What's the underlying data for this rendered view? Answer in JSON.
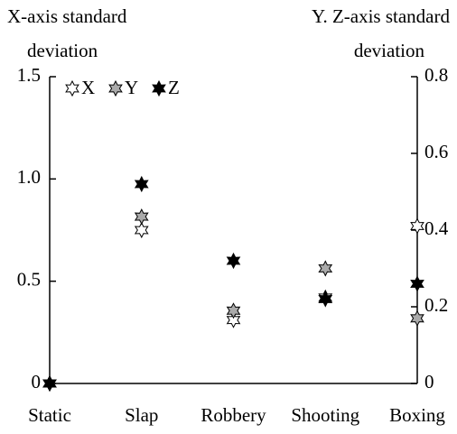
{
  "chart_data": {
    "type": "scatter",
    "ylabel": [
      "X-axis standard",
      "deviation"
    ],
    "y2label": [
      "Y. Z-axis standard",
      "deviation"
    ],
    "categories": [
      "Static",
      "Slap",
      "Robbery",
      "Shooting",
      "Boxing"
    ],
    "ylim": [
      0,
      1.5
    ],
    "yticks": [
      0,
      0.5,
      {
        "value": 1,
        "label": "1.0"
      },
      {
        "value": 1.5,
        "label": "1.5"
      }
    ],
    "y2lim": [
      0,
      0.8
    ],
    "y2ticks": [
      0,
      0.2,
      0.4,
      0.6,
      0.8
    ],
    "legend": "top-left",
    "series": [
      {
        "name": "X",
        "color": "#ffffff",
        "values": [
          0,
          0.75,
          0.31,
          0.42,
          0.77
        ]
      },
      {
        "name": "Y",
        "color": "#aaaaaa",
        "axis": "y2",
        "values": [
          0,
          0.435,
          0.19,
          0.3,
          0.17
        ]
      },
      {
        "name": "Z",
        "color": "#000000",
        "axis": "y2",
        "values": [
          0,
          0.52,
          0.32,
          0.22,
          0.26
        ]
      }
    ]
  }
}
